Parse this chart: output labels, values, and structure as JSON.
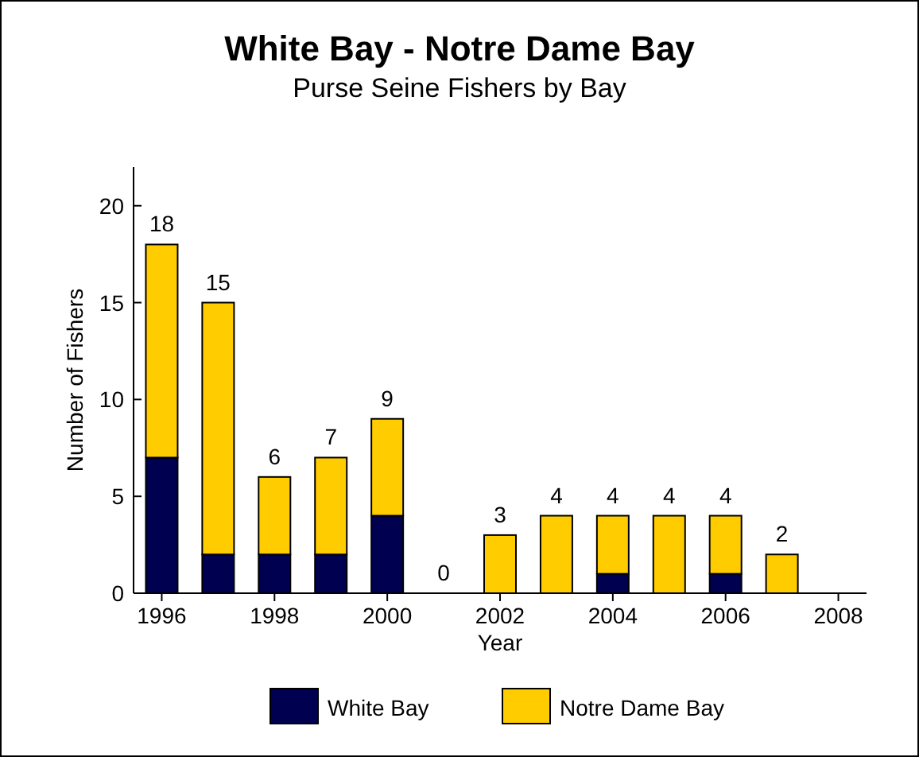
{
  "chart_data": {
    "type": "bar",
    "title": "White Bay - Notre Dame Bay",
    "subtitle": "Purse Seine Fishers by Bay",
    "xlabel": "Year",
    "ylabel": "Number of Fishers",
    "x": [
      1996,
      1997,
      1998,
      1999,
      2000,
      2001,
      2002,
      2003,
      2004,
      2005,
      2006,
      2007
    ],
    "series": [
      {
        "name": "White Bay",
        "color": "#000050",
        "values": [
          7,
          2,
          2,
          2,
          4,
          0,
          0,
          0,
          1,
          0,
          1,
          0
        ]
      },
      {
        "name": "Notre Dame Bay",
        "color": "#ffcc00",
        "values": [
          11,
          13,
          4,
          5,
          5,
          0,
          3,
          4,
          3,
          4,
          3,
          2
        ]
      }
    ],
    "stacked": true,
    "totals": [
      "18",
      "15",
      "6",
      "7",
      "9",
      "0",
      "3",
      "4",
      "4",
      "4",
      "4",
      "2"
    ],
    "xlim": [
      1995.5,
      2008.5
    ],
    "xticks": [
      1996,
      1998,
      2000,
      2002,
      2004,
      2006,
      2008
    ],
    "ylim": [
      0,
      22
    ],
    "yticks": [
      0,
      5,
      10,
      15,
      20
    ],
    "legend": "bottom"
  }
}
